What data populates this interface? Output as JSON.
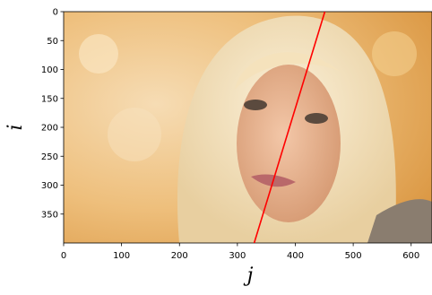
{
  "chart_data": {
    "type": "line",
    "xlabel": "j",
    "ylabel": "i",
    "x": [
      451,
      329
    ],
    "values": [
      0,
      400
    ],
    "color": "#ff0000",
    "xlim": [
      0,
      636
    ],
    "ylim": [
      400,
      0
    ],
    "xticks": [
      0,
      100,
      200,
      300,
      400,
      500,
      600
    ],
    "yticks": [
      0,
      50,
      100,
      150,
      200,
      250,
      300,
      350
    ]
  }
}
